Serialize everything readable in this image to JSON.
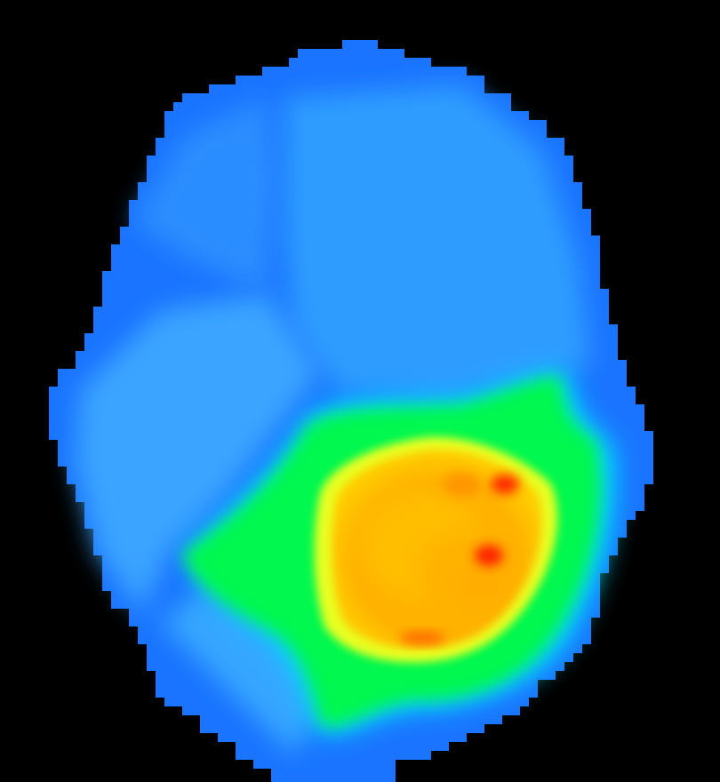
{
  "scene": {
    "description_type": "thermal-style heat intensity map",
    "background_color": "#000000",
    "colormap": [
      "#1a6cff",
      "#2f9bff",
      "#00f0ff",
      "#00ff55",
      "#ffff00",
      "#ffb000",
      "#ff2a00"
    ]
  }
}
